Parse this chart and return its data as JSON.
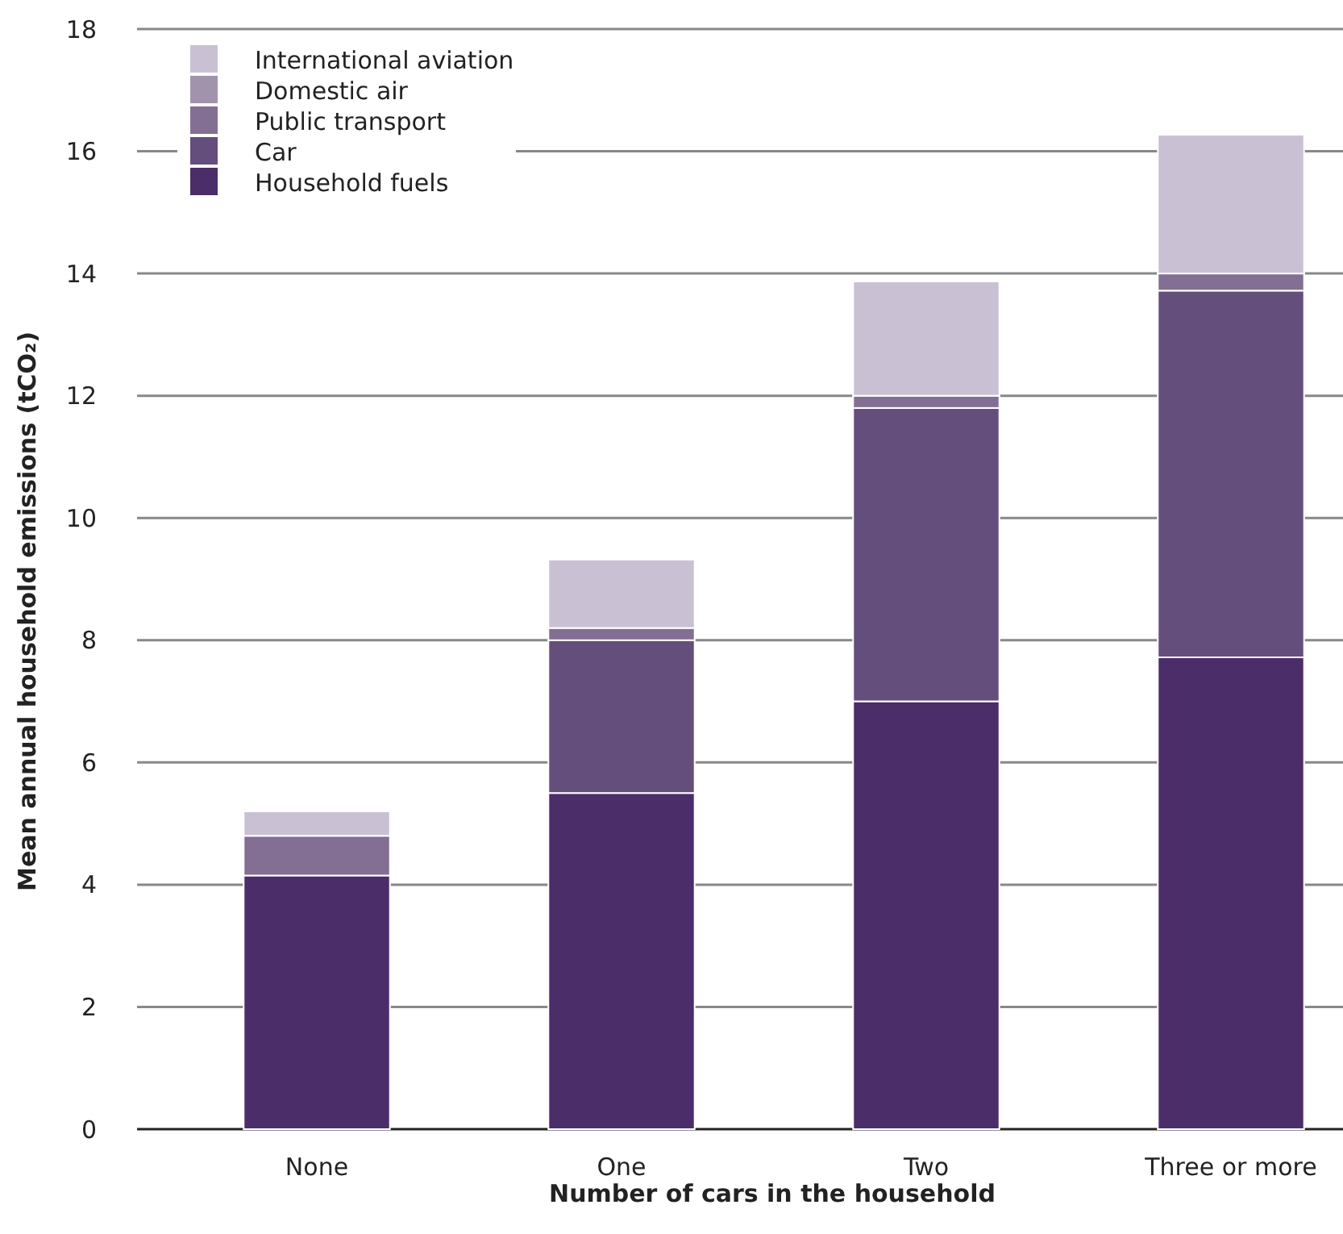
{
  "chart_data": {
    "type": "bar",
    "stacked": true,
    "xlabel": "Number of cars in the household",
    "ylabel": "Mean annual household emissions (tCO₂)",
    "categories": [
      "None",
      "One",
      "Two",
      "Three or more"
    ],
    "series": [
      {
        "name": "Household fuels",
        "color": "#4b2d69",
        "values": [
          4.15,
          5.5,
          7.0,
          7.72
        ]
      },
      {
        "name": "Car",
        "color": "#644e7b",
        "values": [
          0,
          2.5,
          4.8,
          6.0
        ]
      },
      {
        "name": "Public transport",
        "color": "#826f93",
        "values": [
          0.65,
          0.2,
          0.2,
          0.28
        ]
      },
      {
        "name": "Domestic air",
        "color": "#a293ad",
        "values": [
          0,
          null,
          null,
          null
        ]
      },
      {
        "name": "International aviation",
        "color": "#c9c1d3",
        "values": [
          0.4,
          1.12,
          1.87,
          2.27
        ]
      }
    ],
    "ylim": [
      0,
      18
    ],
    "yticks": [
      0,
      2,
      4,
      6,
      8,
      10,
      12,
      14,
      16,
      18
    ],
    "grid": "y",
    "legend": "top left"
  }
}
